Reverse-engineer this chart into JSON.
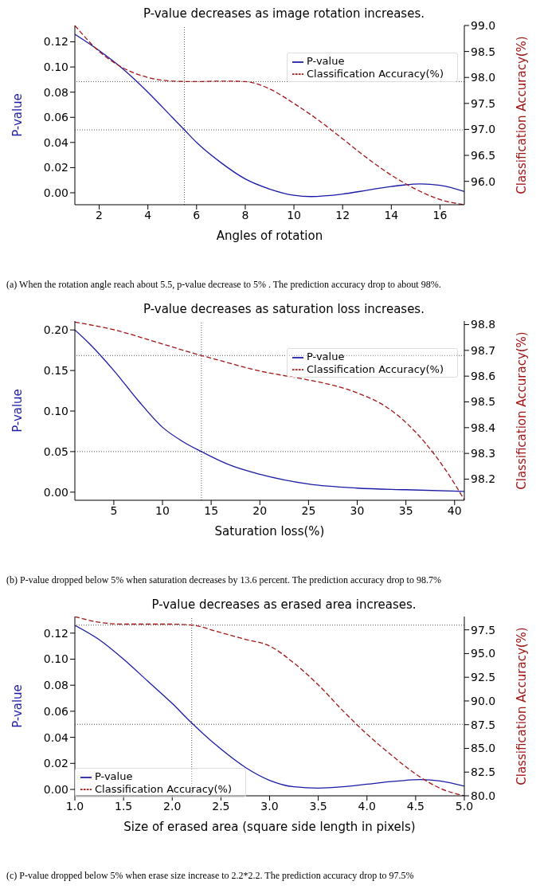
{
  "chart_data": [
    {
      "type": "line",
      "title": "P-value decreases as image rotation increases.",
      "xlabel": "Angles of rotation",
      "ylabel": "P-value",
      "y2label": "Classification Accuracy(%)",
      "xlim": [
        1,
        17
      ],
      "xticks": [
        2,
        4,
        6,
        8,
        10,
        12,
        14,
        16
      ],
      "ylim": [
        -0.0095,
        0.133
      ],
      "yticks": [
        {
          "value": 0,
          "label": "0.00"
        },
        {
          "value": 0.02,
          "label": "0.02"
        },
        {
          "value": 0.04,
          "label": "0.04"
        },
        {
          "value": 0.06,
          "label": "0.06"
        },
        {
          "value": 0.08,
          "label": "0.08"
        },
        {
          "value": 0.1,
          "label": "0.10"
        },
        {
          "value": 0.12,
          "label": "0.12"
        }
      ],
      "y2lim": [
        95.55,
        99.0
      ],
      "y2ticks": [
        {
          "value": 96,
          "label": "96.0"
        },
        {
          "value": 96.5,
          "label": "96.5"
        },
        {
          "value": 97,
          "label": "97.0"
        },
        {
          "value": 97.5,
          "label": "97.5"
        },
        {
          "value": 98,
          "label": "98.0"
        },
        {
          "value": 98.5,
          "label": "98.5"
        },
        {
          "value": 99,
          "label": "99.0"
        }
      ],
      "marker": "none",
      "legend": "top right",
      "series": [
        {
          "name": "P-value",
          "color": "#1a1aa6",
          "line_style": "solid",
          "x": [
            1,
            2,
            3,
            4,
            5,
            5.5,
            6,
            7,
            8,
            9,
            10,
            10.7,
            12,
            13,
            14,
            15.2,
            16,
            17
          ],
          "values": [
            0.126,
            0.113,
            0.098,
            0.08,
            0.06,
            0.05,
            0.04,
            0.024,
            0.011,
            0.003,
            -0.002,
            -0.003,
            -0.001,
            0.002,
            0.005,
            0.007,
            0.006,
            0.001
          ]
        },
        {
          "name": "Classification Accuracy(%)",
          "color": "#a31515",
          "line_style": "dashed",
          "axis": "y2",
          "x": [
            1,
            2,
            3,
            4,
            5,
            6,
            7,
            8,
            9,
            10,
            11,
            12,
            13,
            14,
            15,
            16,
            17
          ],
          "values": [
            99.0,
            98.5,
            98.18,
            98.0,
            97.93,
            97.92,
            97.93,
            97.92,
            97.78,
            97.5,
            97.18,
            96.82,
            96.45,
            96.12,
            95.85,
            95.65,
            95.55
          ]
        }
      ],
      "ref_lines": [
        {
          "axis": "x",
          "value": 5.5,
          "color": "#555555",
          "line_style": "dotted"
        },
        {
          "axis": "y",
          "value": 0.05,
          "color": "#555555",
          "line_style": "dotted"
        },
        {
          "axis": "y2",
          "value": 97.92,
          "color": "#555555",
          "line_style": "dotted"
        }
      ],
      "annotations": [
        "(a) When the rotation angle reach about 5.5, p-value decrease to 5% . The prediction accuracy drop to about 98%."
      ]
    },
    {
      "type": "line",
      "title": "P-value decreases as saturation loss increases.",
      "xlabel": "Saturation loss(%)",
      "ylabel": "P-value",
      "y2label": "Classification Accuracy(%)",
      "xlim": [
        1,
        41
      ],
      "xticks": [
        5,
        10,
        15,
        20,
        25,
        30,
        35,
        40
      ],
      "ylim": [
        -0.01,
        0.211
      ],
      "yticks": [
        {
          "value": 0,
          "label": "0.00"
        },
        {
          "value": 0.05,
          "label": "0.05"
        },
        {
          "value": 0.1,
          "label": "0.10"
        },
        {
          "value": 0.15,
          "label": "0.15"
        },
        {
          "value": 0.2,
          "label": "0.20"
        }
      ],
      "y2lim": [
        98.118,
        98.814
      ],
      "y2ticks": [
        98.2,
        98.3,
        98.4,
        98.5,
        98.6,
        98.7,
        98.8
      ],
      "marker": "none",
      "legend": "top right",
      "series": [
        {
          "name": "P-value",
          "color": "#1a1aa6",
          "line_style": "solid",
          "x": [
            1,
            2.5,
            5,
            7.5,
            10,
            12,
            14,
            17,
            20,
            25,
            30,
            35,
            41
          ],
          "values": [
            0.2,
            0.183,
            0.15,
            0.113,
            0.08,
            0.063,
            0.05,
            0.033,
            0.022,
            0.01,
            0.005,
            0.003,
            0.001
          ]
        },
        {
          "name": "Classification Accuracy(%)",
          "color": "#a31515",
          "line_style": "dashed",
          "axis": "y2",
          "x": [
            1,
            5,
            10,
            14,
            15,
            20,
            25,
            28,
            30,
            33,
            35,
            37,
            39,
            41
          ],
          "values": [
            98.81,
            98.78,
            98.725,
            98.68,
            98.67,
            98.62,
            98.585,
            98.56,
            98.535,
            98.48,
            98.42,
            98.34,
            98.24,
            98.12
          ]
        }
      ],
      "ref_lines": [
        {
          "axis": "x",
          "value": 14,
          "color": "#555555",
          "line_style": "dotted"
        },
        {
          "axis": "y",
          "value": 0.05,
          "color": "#555555",
          "line_style": "dotted"
        },
        {
          "axis": "y2",
          "value": 98.68,
          "color": "#555555",
          "line_style": "dotted"
        }
      ],
      "annotations": [
        "(b) P-value dropped below 5% when saturation decreases by 13.6 percent. The prediction accuracy drop to 98.7%"
      ]
    },
    {
      "type": "line",
      "title": "P-value decreases as erased area increases.",
      "xlabel": "Size of erased area (square side length in pixels)",
      "ylabel": "P-value",
      "y2label": "Classification Accuracy(%)",
      "xlim": [
        1,
        5
      ],
      "xticks": [
        {
          "value": 1,
          "label": "1.0"
        },
        1.5,
        {
          "value": 2,
          "label": "2.0"
        },
        2.5,
        {
          "value": 3,
          "label": "3.0"
        },
        3.5,
        {
          "value": 4,
          "label": "4.0"
        },
        4.5,
        {
          "value": 5,
          "label": "5.0"
        }
      ],
      "ylim": [
        -0.0049,
        0.1327
      ],
      "yticks": [
        {
          "value": 0,
          "label": "0.00"
        },
        {
          "value": 0.02,
          "label": "0.02"
        },
        {
          "value": 0.04,
          "label": "0.04"
        },
        {
          "value": 0.06,
          "label": "0.06"
        },
        {
          "value": 0.08,
          "label": "0.08"
        },
        {
          "value": 0.1,
          "label": "0.10"
        },
        {
          "value": 0.12,
          "label": "0.12"
        }
      ],
      "y2lim": [
        80.0,
        98.9
      ],
      "y2ticks": [
        {
          "value": 80,
          "label": "80.0"
        },
        82.5,
        {
          "value": 85,
          "label": "85.0"
        },
        87.5,
        {
          "value": 90,
          "label": "90.0"
        },
        92.5,
        {
          "value": 95,
          "label": "95.0"
        },
        97.5
      ],
      "marker": "none",
      "legend": "bottom left",
      "series": [
        {
          "name": "P-value",
          "color": "#1a1aa6",
          "line_style": "solid",
          "x": [
            1,
            1.25,
            1.5,
            1.75,
            2,
            2.2,
            2.5,
            2.75,
            3,
            3.25,
            3.5,
            3.75,
            4,
            4.25,
            4.55,
            4.75,
            5
          ],
          "values": [
            0.126,
            0.115,
            0.1,
            0.083,
            0.066,
            0.051,
            0.031,
            0.017,
            0.007,
            0.002,
            0.001,
            0.002,
            0.004,
            0.006,
            0.0075,
            0.0065,
            0.0025
          ]
        },
        {
          "name": "Classification Accuracy(%)",
          "color": "#a31515",
          "line_style": "dashed",
          "axis": "y2",
          "x": [
            1,
            1.25,
            1.5,
            2,
            2.2,
            2.5,
            2.75,
            3,
            3.25,
            3.5,
            3.75,
            4,
            4.25,
            4.5,
            4.75,
            5
          ],
          "values": [
            98.9,
            98.3,
            98.1,
            98.1,
            98.0,
            97.2,
            96.5,
            95.8,
            94.0,
            91.7,
            89.0,
            86.5,
            84.3,
            82.3,
            80.8,
            80.0
          ]
        }
      ],
      "ref_lines": [
        {
          "axis": "x",
          "value": 2.2,
          "color": "#555555",
          "line_style": "dotted"
        },
        {
          "axis": "y",
          "value": 0.05,
          "color": "#555555",
          "line_style": "dotted"
        },
        {
          "axis": "y2",
          "value": 98.0,
          "color": "#555555",
          "line_style": "dotted"
        }
      ],
      "annotations": [
        "(c) P-value dropped below 5% when erase size increase to 2.2*2.2. The prediction accuracy drop to 97.5%"
      ]
    }
  ]
}
